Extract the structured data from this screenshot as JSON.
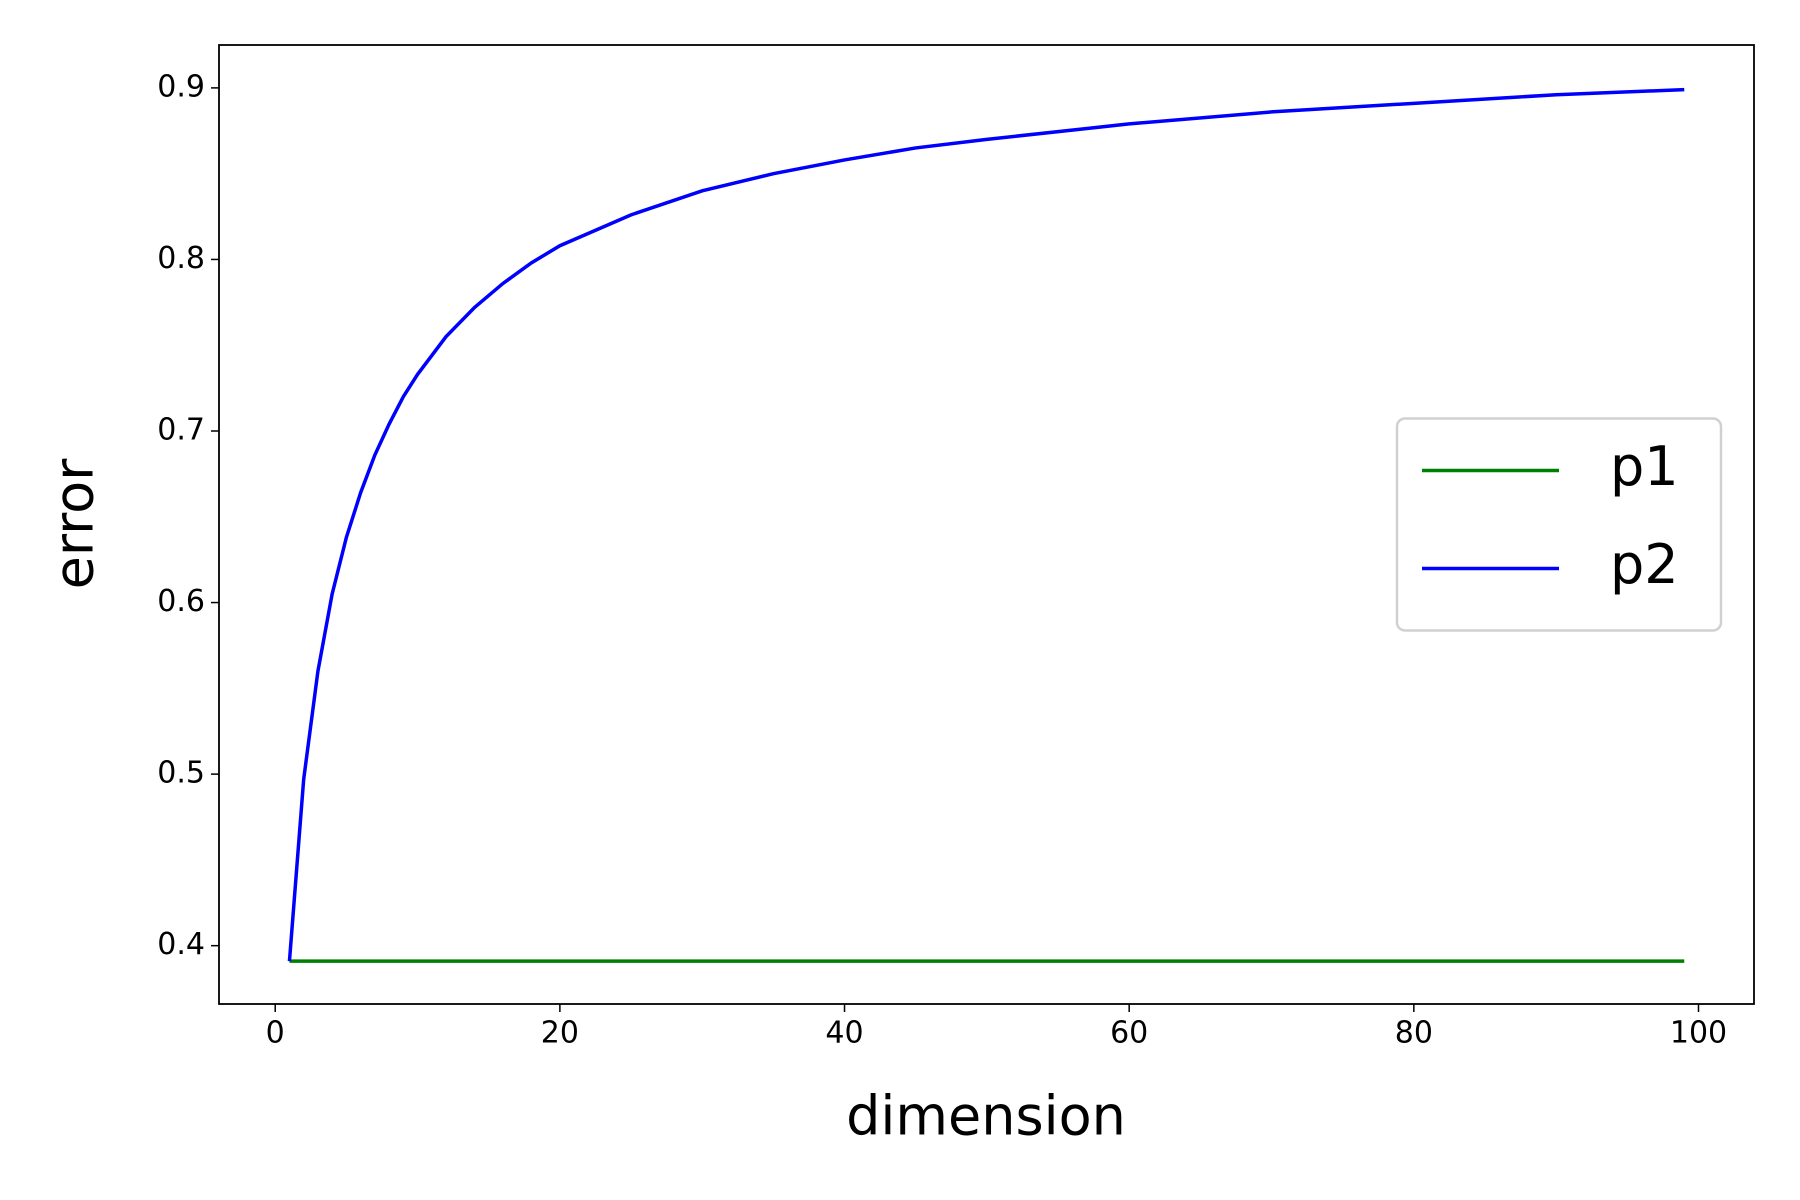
{
  "chart_data": {
    "type": "line",
    "xlabel": "dimension",
    "ylabel": "error",
    "x": [
      1,
      2,
      3,
      4,
      5,
      6,
      7,
      8,
      9,
      10,
      12,
      14,
      16,
      18,
      20,
      25,
      30,
      35,
      40,
      45,
      50,
      60,
      70,
      80,
      90,
      99
    ],
    "series": [
      {
        "name": "p1",
        "color": "#008000",
        "values": [
          0.391,
          0.391,
          0.391,
          0.391,
          0.391,
          0.391,
          0.391,
          0.391,
          0.391,
          0.391,
          0.391,
          0.391,
          0.391,
          0.391,
          0.391,
          0.391,
          0.391,
          0.391,
          0.391,
          0.391,
          0.391,
          0.391,
          0.391,
          0.391,
          0.391,
          0.391
        ]
      },
      {
        "name": "p2",
        "color": "#0000ff",
        "values": [
          0.391,
          0.497,
          0.56,
          0.605,
          0.638,
          0.664,
          0.686,
          0.704,
          0.72,
          0.733,
          0.755,
          0.772,
          0.786,
          0.798,
          0.808,
          0.826,
          0.84,
          0.85,
          0.858,
          0.865,
          0.87,
          0.879,
          0.886,
          0.891,
          0.896,
          0.899
        ]
      }
    ],
    "xlim": [
      -3.95,
      103.9
    ],
    "xticks": [
      0,
      20,
      40,
      60,
      80,
      100
    ],
    "ylim": [
      0.366,
      0.925
    ],
    "yticks": [
      0.4,
      0.5,
      0.6,
      0.7,
      0.8,
      0.9
    ],
    "legend": "center right",
    "grid": false
  }
}
